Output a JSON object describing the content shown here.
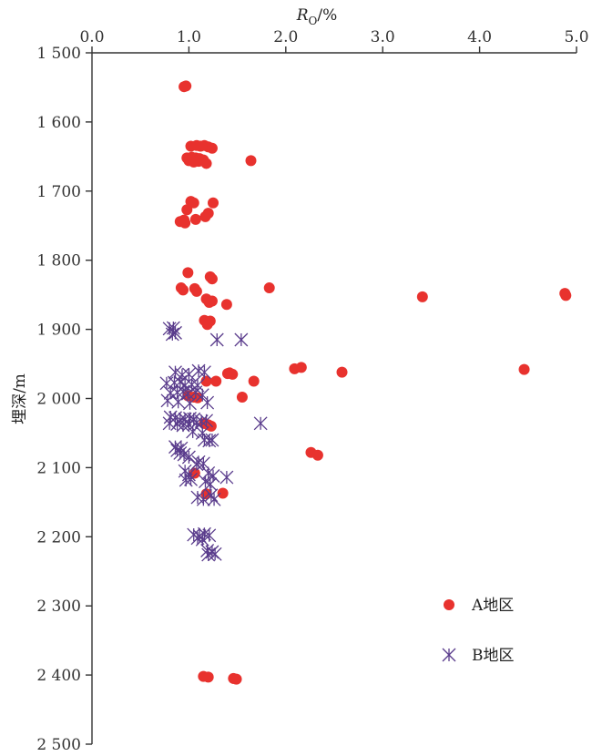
{
  "chart_data": {
    "type": "scatter",
    "x_axis_position": "top",
    "y_axis_inverted": true,
    "xlabel_main": "R",
    "xlabel_sub": "O",
    "xlabel_unit": "/%",
    "ylabel": "埋深/m",
    "xlim": [
      0,
      5
    ],
    "ylim": [
      1500,
      2500
    ],
    "x_ticks": [
      "0.0",
      "1.0",
      "2.0",
      "3.0",
      "4.0",
      "5.0"
    ],
    "y_ticks": [
      "1 500",
      "1 600",
      "1 700",
      "1 800",
      "1 900",
      "2 000",
      "2 100",
      "2 200",
      "2 300",
      "2 400",
      "2 500"
    ],
    "legend_position": "bottom-right",
    "series": [
      {
        "name": "A地区",
        "marker": "circle",
        "color": "#e8322e",
        "points": [
          [
            0.97,
            1548
          ],
          [
            0.95,
            1549
          ],
          [
            1.02,
            1635
          ],
          [
            1.08,
            1634
          ],
          [
            1.12,
            1635
          ],
          [
            1.16,
            1634
          ],
          [
            1.2,
            1636
          ],
          [
            1.24,
            1638
          ],
          [
            0.98,
            1652
          ],
          [
            1.03,
            1651
          ],
          [
            1.07,
            1652
          ],
          [
            1.11,
            1653
          ],
          [
            1.15,
            1655
          ],
          [
            1.0,
            1656
          ],
          [
            1.05,
            1658
          ],
          [
            1.1,
            1657
          ],
          [
            1.18,
            1660
          ],
          [
            1.64,
            1656
          ],
          [
            1.02,
            1715
          ],
          [
            1.05,
            1717
          ],
          [
            1.25,
            1717
          ],
          [
            0.98,
            1727
          ],
          [
            1.2,
            1732
          ],
          [
            1.17,
            1737
          ],
          [
            0.95,
            1742
          ],
          [
            0.91,
            1744
          ],
          [
            1.07,
            1741
          ],
          [
            0.96,
            1746
          ],
          [
            0.99,
            1818
          ],
          [
            1.22,
            1824
          ],
          [
            1.24,
            1827
          ],
          [
            0.92,
            1840
          ],
          [
            1.06,
            1841
          ],
          [
            1.83,
            1840
          ],
          [
            0.94,
            1843
          ],
          [
            1.08,
            1845
          ],
          [
            1.18,
            1856
          ],
          [
            1.24,
            1859
          ],
          [
            1.39,
            1864
          ],
          [
            1.21,
            1861
          ],
          [
            3.41,
            1853
          ],
          [
            4.88,
            1848
          ],
          [
            4.89,
            1851
          ],
          [
            1.16,
            1887
          ],
          [
            1.22,
            1888
          ],
          [
            1.19,
            1893
          ],
          [
            2.09,
            1957
          ],
          [
            2.16,
            1955
          ],
          [
            2.58,
            1962
          ],
          [
            4.46,
            1958
          ],
          [
            1.42,
            1963
          ],
          [
            1.45,
            1965
          ],
          [
            1.4,
            1964
          ],
          [
            1.18,
            1975
          ],
          [
            1.28,
            1975
          ],
          [
            1.67,
            1975
          ],
          [
            0.99,
            1996
          ],
          [
            1.05,
            1998
          ],
          [
            1.09,
            1999
          ],
          [
            1.55,
            1998
          ],
          [
            1.16,
            2036
          ],
          [
            1.2,
            2038
          ],
          [
            1.23,
            2040
          ],
          [
            2.26,
            2078
          ],
          [
            2.33,
            2082
          ],
          [
            1.06,
            2108
          ],
          [
            1.18,
            2138
          ],
          [
            1.35,
            2137
          ],
          [
            1.15,
            2402
          ],
          [
            1.2,
            2403
          ],
          [
            1.46,
            2405
          ],
          [
            1.49,
            2406
          ]
        ]
      },
      {
        "name": "B地区",
        "marker": "asterisk",
        "color": "#5a3c8c",
        "points": [
          [
            0.8,
            1899
          ],
          [
            0.84,
            1898
          ],
          [
            0.86,
            1905
          ],
          [
            0.83,
            1907
          ],
          [
            1.29,
            1915
          ],
          [
            1.54,
            1915
          ],
          [
            0.86,
            1962
          ],
          [
            0.93,
            1966
          ],
          [
            1.0,
            1965
          ],
          [
            1.1,
            1960
          ],
          [
            1.16,
            1962
          ],
          [
            0.77,
            1978
          ],
          [
            0.85,
            1977
          ],
          [
            0.91,
            1976
          ],
          [
            0.96,
            1981
          ],
          [
            1.03,
            1980
          ],
          [
            1.09,
            1981
          ],
          [
            0.81,
            1992
          ],
          [
            0.88,
            1991
          ],
          [
            0.94,
            1990
          ],
          [
            0.99,
            1993
          ],
          [
            1.07,
            1991
          ],
          [
            1.14,
            1995
          ],
          [
            0.78,
            2003
          ],
          [
            0.89,
            2005
          ],
          [
            1.01,
            2007
          ],
          [
            1.19,
            2006
          ],
          [
            0.81,
            2027
          ],
          [
            0.86,
            2028
          ],
          [
            0.91,
            2031
          ],
          [
            0.96,
            2030
          ],
          [
            1.01,
            2029
          ],
          [
            1.05,
            2030
          ],
          [
            1.13,
            2033
          ],
          [
            1.18,
            2032
          ],
          [
            0.8,
            2036
          ],
          [
            0.88,
            2037
          ],
          [
            0.94,
            2039
          ],
          [
            1.0,
            2038
          ],
          [
            1.08,
            2035
          ],
          [
            1.74,
            2036
          ],
          [
            1.04,
            2048
          ],
          [
            1.14,
            2050
          ],
          [
            1.16,
            2060
          ],
          [
            1.21,
            2061
          ],
          [
            1.24,
            2060
          ],
          [
            0.86,
            2070
          ],
          [
            0.92,
            2072
          ],
          [
            0.88,
            2075
          ],
          [
            0.95,
            2081
          ],
          [
            1.0,
            2085
          ],
          [
            0.91,
            2079
          ],
          [
            1.1,
            2092
          ],
          [
            1.15,
            2094
          ],
          [
            1.08,
            2095
          ],
          [
            0.96,
            2105
          ],
          [
            1.0,
            2110
          ],
          [
            1.2,
            2108
          ],
          [
            1.25,
            2112
          ],
          [
            1.39,
            2114
          ],
          [
            0.97,
            2118
          ],
          [
            1.02,
            2117
          ],
          [
            1.17,
            2120
          ],
          [
            1.22,
            2124
          ],
          [
            1.09,
            2143
          ],
          [
            1.15,
            2146
          ],
          [
            1.26,
            2146
          ],
          [
            1.23,
            2140
          ],
          [
            1.05,
            2197
          ],
          [
            1.11,
            2199
          ],
          [
            1.16,
            2196
          ],
          [
            1.21,
            2198
          ],
          [
            1.09,
            2202
          ],
          [
            1.14,
            2204
          ],
          [
            1.19,
            2220
          ],
          [
            1.24,
            2222
          ],
          [
            1.2,
            2226
          ],
          [
            1.27,
            2225
          ]
        ]
      }
    ]
  }
}
